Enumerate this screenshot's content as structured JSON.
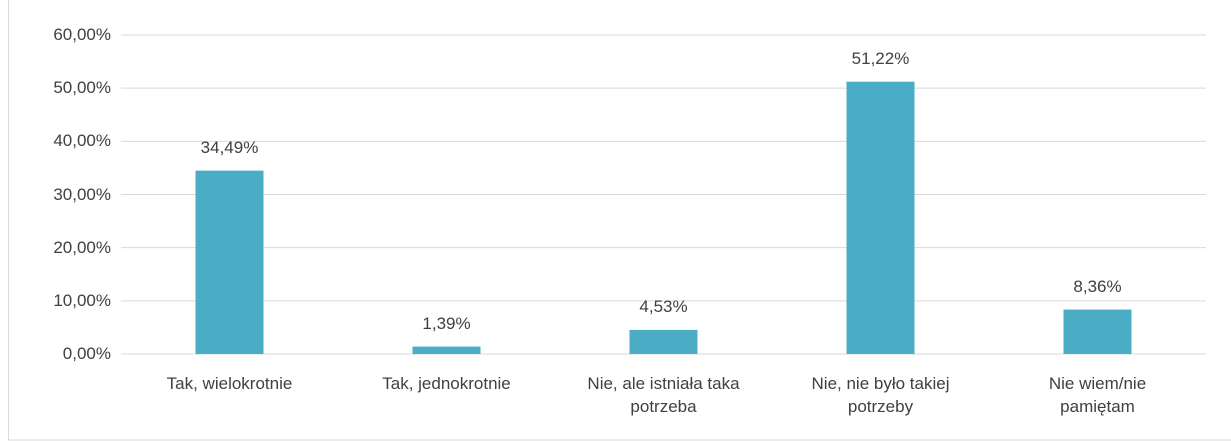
{
  "chart_data": {
    "type": "bar",
    "categories": [
      "Tak, wielokrotnie",
      "Tak, jednokrotnie",
      "Nie, ale istniała taka\npotrzeba",
      "Nie, nie było takiej\npotrzeby",
      "Nie wiem/nie\npamiętam"
    ],
    "values": [
      34.49,
      1.39,
      4.53,
      51.22,
      8.36
    ],
    "value_labels": [
      "34,49%",
      "1,39%",
      "4,53%",
      "51,22%",
      "8,36%"
    ],
    "color": "#4bacc6",
    "ylim": [
      0,
      60
    ],
    "yticks": [
      {
        "value": 0,
        "label": "0,00%"
      },
      {
        "value": 10,
        "label": "10,00%"
      },
      {
        "value": 20,
        "label": "20,00%"
      },
      {
        "value": 30,
        "label": "30,00%"
      },
      {
        "value": 40,
        "label": "40,00%"
      },
      {
        "value": 50,
        "label": "50,00%"
      },
      {
        "value": 60,
        "label": "60,00%"
      }
    ],
    "grid": true
  }
}
